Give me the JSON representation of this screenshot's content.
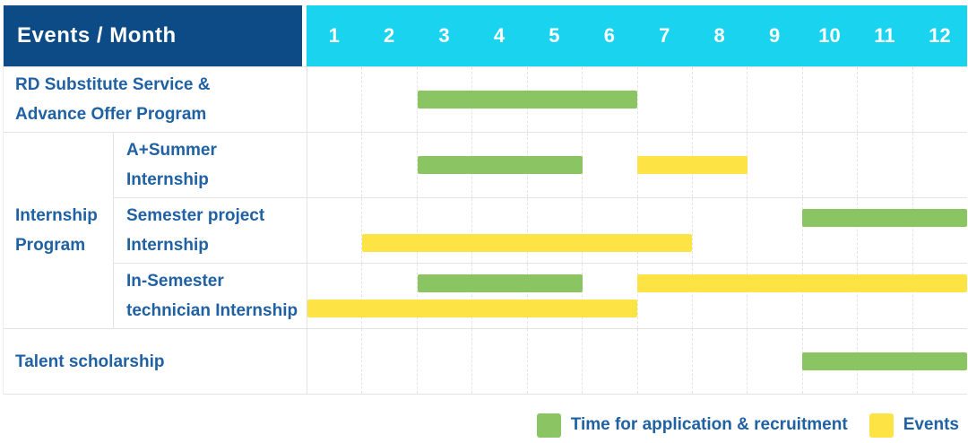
{
  "table": {
    "corner_label": "Events / Month",
    "months": [
      "1",
      "2",
      "3",
      "4",
      "5",
      "6",
      "7",
      "8",
      "9",
      "10",
      "11",
      "12"
    ]
  },
  "group_column": {
    "label": "Internship Program",
    "label_lines": [
      "Internship",
      "Program"
    ]
  },
  "chart_data": {
    "type": "bar",
    "subtype": "gantt",
    "x_label": "Month",
    "x_ticks": [
      1,
      2,
      3,
      4,
      5,
      6,
      7,
      8,
      9,
      10,
      11,
      12
    ],
    "x_range": [
      1,
      12
    ],
    "grid": "dashed-vertical-month-lines",
    "legend_position": "bottom-right",
    "series_legend": [
      {
        "key": "application",
        "label": "Time for application & recruitment",
        "color": "#8bc563"
      },
      {
        "key": "event",
        "label": "Events",
        "color": "#fde344"
      }
    ],
    "rows": [
      {
        "name": "RD Substitute Service & Advance Offer Program",
        "label_lines": [
          "RD Substitute Service &",
          "Advance Offer Program"
        ],
        "group": null,
        "full_width": true,
        "bars": [
          {
            "series": "application",
            "start_month": 3,
            "end_month": 6,
            "line": "single"
          }
        ]
      },
      {
        "name": "A+Summer Internship",
        "label_lines": [
          "A+Summer",
          "Internship"
        ],
        "group": "Internship Program",
        "full_width": false,
        "bars": [
          {
            "series": "application",
            "start_month": 3,
            "end_month": 5,
            "line": "single"
          },
          {
            "series": "event",
            "start_month": 7,
            "end_month": 8,
            "line": "single"
          }
        ]
      },
      {
        "name": "Semester project Internship",
        "label_lines": [
          "Semester project",
          "Internship"
        ],
        "group": "Internship Program",
        "full_width": false,
        "bars": [
          {
            "series": "application",
            "start_month": 10,
            "end_month": 12,
            "line": "top"
          },
          {
            "series": "event",
            "start_month": 2,
            "end_month": 7,
            "line": "bottom"
          }
        ]
      },
      {
        "name": "In-Semester technician Internship",
        "label_lines": [
          "In-Semester",
          "technician Internship"
        ],
        "group": "Internship Program",
        "full_width": false,
        "bars": [
          {
            "series": "application",
            "start_month": 3,
            "end_month": 5,
            "line": "top"
          },
          {
            "series": "event",
            "start_month": 7,
            "end_month": 12,
            "line": "top"
          },
          {
            "series": "event",
            "start_month": 1,
            "end_month": 6,
            "line": "bottom"
          }
        ]
      },
      {
        "name": "Talent scholarship",
        "label_lines": [
          "Talent scholarship"
        ],
        "group": null,
        "full_width": true,
        "bars": [
          {
            "series": "application",
            "start_month": 10,
            "end_month": 12,
            "line": "single"
          }
        ]
      }
    ]
  },
  "legend": {
    "items": [
      {
        "key": "application",
        "label": "Time for application & recruitment"
      },
      {
        "key": "event",
        "label": "Events"
      }
    ]
  },
  "colors": {
    "header_bg": "#0d4b87",
    "months_bg": "#1ad3ef",
    "header_text": "#ffffff",
    "label_text": "#2061a3",
    "application": "#8bc563",
    "event": "#fde344",
    "grid_line": "#e4e4e4",
    "row_border": "#e3e3e3"
  }
}
